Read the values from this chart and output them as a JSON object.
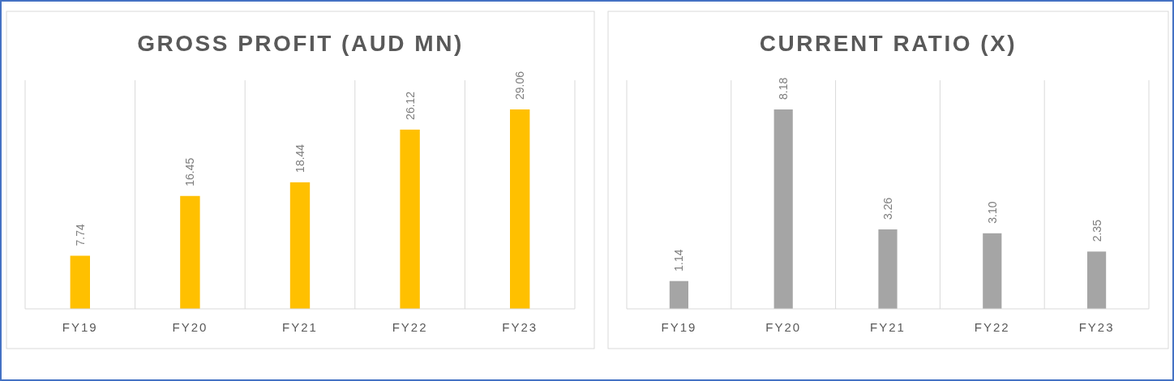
{
  "chart_data": [
    {
      "type": "bar",
      "title": "GROSS PROFIT (AUD MN)",
      "categories": [
        "FY19",
        "FY20",
        "FY21",
        "FY22",
        "FY23"
      ],
      "values": [
        7.74,
        16.45,
        18.44,
        26.12,
        29.06
      ],
      "value_labels": [
        "7.74",
        "16.45",
        "18.44",
        "26.12",
        "29.06"
      ],
      "color": "#ffc000",
      "grid": "x"
    },
    {
      "type": "bar",
      "title": "CURRENT RATIO (X)",
      "categories": [
        "FY19",
        "FY20",
        "FY21",
        "FY22",
        "FY23"
      ],
      "values": [
        1.14,
        8.18,
        3.26,
        3.1,
        2.35
      ],
      "value_labels": [
        "1.14",
        "8.18",
        "3.26",
        "3.10",
        "2.35"
      ],
      "color": "#a5a5a5",
      "grid": "x"
    }
  ]
}
